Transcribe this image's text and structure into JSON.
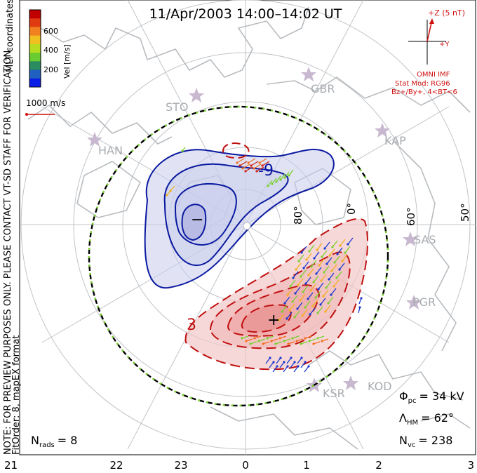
{
  "title": "11/Apr/2003 14:00–14:02 UT",
  "left_note": "NOTE: FOR PREVIEW PURPOSES ONLY. PLEASE CONTACT VT-SD STAFF FOR VERIFICATION.",
  "fit_order": "FitOrder: 8, mapEX format",
  "colorbar": {
    "label": "Vel [m/s]",
    "ticks": [
      "600",
      "400",
      "200"
    ],
    "colors": [
      "#0a1ee8",
      "#2060c0",
      "#2a8a60",
      "#6acc30",
      "#b8dc20",
      "#f0c020",
      "#f08020",
      "#e03a10",
      "#c00000"
    ]
  },
  "coord_label": "MLT coordinates",
  "scale_label": "1000 m/s",
  "imf": {
    "z_label": "+Z (5 nT)",
    "y_label": "+Y",
    "source": "OMNI IMF",
    "model": "Stat Mod: RG96",
    "condition": "Bz+/By+, 4<BT<6"
  },
  "stations": [
    "GBR",
    "STO",
    "HAN",
    "KAP",
    "SAS",
    "PGR",
    "KOD",
    "KSR"
  ],
  "lon_labels": [
    "80°",
    "0°",
    "60°",
    "50°"
  ],
  "contour_labels": [
    "-9",
    "3"
  ],
  "extrema": [
    "−",
    "+"
  ],
  "stats": {
    "phi_sym": "Φ",
    "phi_sub": "pc",
    "phi_val": "= 34 kV",
    "lambda_sym": "Λ",
    "lambda_sub": "HM",
    "lambda_val": "= 62°",
    "nvc_sym": "N",
    "nvc_sub": "vc",
    "nvc_val": "= 238",
    "nrads_sym": "N",
    "nrads_sub": "rads",
    "nrads_val": "= 8"
  },
  "mlt_ticks": [
    "21",
    "22",
    "23",
    "0",
    "1",
    "2",
    "3"
  ],
  "colors": {
    "negative_contour": "#0a1aa0",
    "positive_contour": "#c01010",
    "negative_fill": "#c8ccec",
    "positive_fill": "#f4c8c8",
    "map_outline": "#b8bcc0",
    "grid": "#c0c4c8",
    "station_star": "#c8b8d0",
    "imf": "#d01010"
  }
}
